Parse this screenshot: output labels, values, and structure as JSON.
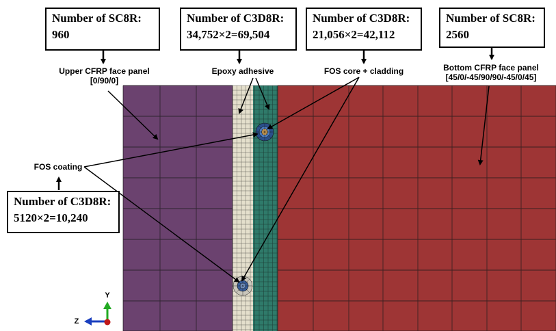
{
  "boxes": {
    "upper_sc8r": {
      "title": "Number of SC8R:",
      "value": "960"
    },
    "epoxy_c3d8r": {
      "title": "Number of C3D8R:",
      "value": "34,752×2=69,504"
    },
    "fos_c3d8r": {
      "title": "Number of C3D8R:",
      "value": "21,056×2=42,112"
    },
    "bottom_sc8r": {
      "title": "Number of SC8R:",
      "value": "2560"
    },
    "coating_c3d8r": {
      "title": "Number of C3D8R:",
      "value": "5120×2=10,240"
    }
  },
  "labels": {
    "upper_panel_line1": "Upper CFRP face panel",
    "upper_panel_line2": "[0/90/0]",
    "epoxy": "Epoxy adhesive",
    "fos_core": "FOS core + cladding",
    "bottom_panel_line1": "Bottom CFRP face panel",
    "bottom_panel_line2": "[45/0/-45/90/90/-45/0/45]",
    "fos_coating": "FOS coating"
  },
  "triad": {
    "y_label": "Y",
    "z_label": "Z"
  },
  "colors": {
    "upper_panel": "#6b426f",
    "epoxy": "#e4dfcc",
    "fos_region": "#2f7a6a",
    "bottom_panel": "#9e3535",
    "mesh_line": "#1a1a1a",
    "axis_y": "#22aa22",
    "axis_z": "#1a3fbf",
    "origin": "#c01818"
  }
}
